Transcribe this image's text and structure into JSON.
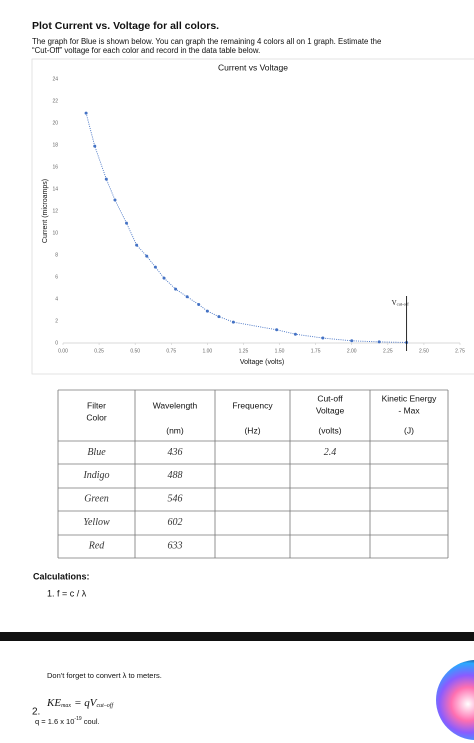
{
  "header": {
    "title": "Plot Current vs. Voltage for all colors.",
    "instructions": [
      "The graph for Blue is shown below.  You can graph the remaining 4 colors all on 1 graph. Estimate the",
      "“Cut-Off” voltage for each color and record in the data table below."
    ]
  },
  "chart_data": {
    "type": "scatter",
    "title": "Current vs Voltage",
    "x_label": "Voltage (volts)",
    "y_label": "Current (microamps)",
    "x": [
      0.16,
      0.22,
      0.3,
      0.36,
      0.44,
      0.51,
      0.58,
      0.64,
      0.7,
      0.78,
      0.86,
      0.94,
      1.0,
      1.08,
      1.18,
      1.48,
      1.61,
      1.8,
      2.0,
      2.19,
      2.38
    ],
    "values": [
      20.9,
      17.9,
      14.9,
      13.0,
      10.9,
      8.9,
      7.9,
      6.9,
      5.9,
      4.9,
      4.2,
      3.5,
      2.9,
      2.4,
      1.9,
      1.2,
      0.8,
      0.45,
      0.2,
      0.1,
      0.05
    ],
    "color": "#4472c4",
    "line_style": "dotted",
    "xlim": [
      0,
      2.75
    ],
    "ylim": [
      0,
      24
    ],
    "xticks": [
      {
        "value": 0,
        "label": "0.00"
      },
      {
        "value": 0.25,
        "label": "0.25"
      },
      {
        "value": 0.5,
        "label": "0.50"
      },
      {
        "value": 0.75,
        "label": "0.75"
      },
      {
        "value": 1,
        "label": "1.00"
      },
      {
        "value": 1.25,
        "label": "1.25"
      },
      {
        "value": 1.5,
        "label": "1.50"
      },
      {
        "value": 1.75,
        "label": "1.75"
      },
      {
        "value": 2,
        "label": "2.00"
      },
      {
        "value": 2.25,
        "label": "2.25"
      },
      {
        "value": 2.5,
        "label": "2.50"
      },
      {
        "value": 2.75,
        "label": "2.75"
      }
    ],
    "yticks": [
      0,
      2,
      4,
      6,
      8,
      10,
      12,
      14,
      16,
      18,
      20,
      22,
      24
    ],
    "grid": false,
    "cutoff": {
      "x": 2.38,
      "label": "V",
      "subscript": "cut-off"
    }
  },
  "table": {
    "columns": [
      {
        "title": [
          "Filter",
          "Color"
        ]
      },
      {
        "title": [
          "Wavelength"
        ],
        "unit": "(nm)"
      },
      {
        "title": [
          "Frequency"
        ],
        "unit": "(Hz)"
      },
      {
        "title": [
          "Cut-off",
          "Voltage"
        ],
        "unit": "(volts)"
      },
      {
        "title": [
          "Kinetic Energy",
          "- Max"
        ],
        "unit": "(J)"
      }
    ],
    "rows": [
      {
        "color": "Blue",
        "wavelength": 436,
        "cutoff_voltage": 2.4
      },
      {
        "color": "Indigo",
        "wavelength": 488
      },
      {
        "color": "Green",
        "wavelength": 546
      },
      {
        "color": "Yellow",
        "wavelength": 602
      },
      {
        "color": "Red",
        "wavelength": 633
      }
    ]
  },
  "calculations": {
    "title": "Calculations:",
    "step1": "1. f = c / λ",
    "note": "Don't forget to convert λ to meters.",
    "step2_number": "2.",
    "equation": {
      "lhs": "KE",
      "lhs_sub": "max",
      "rhs": "= qV",
      "rhs_sub": "cut–off"
    },
    "charge": {
      "text": "q = 1.6 x 10",
      "exponent": "-19",
      "unit": " coul."
    }
  }
}
